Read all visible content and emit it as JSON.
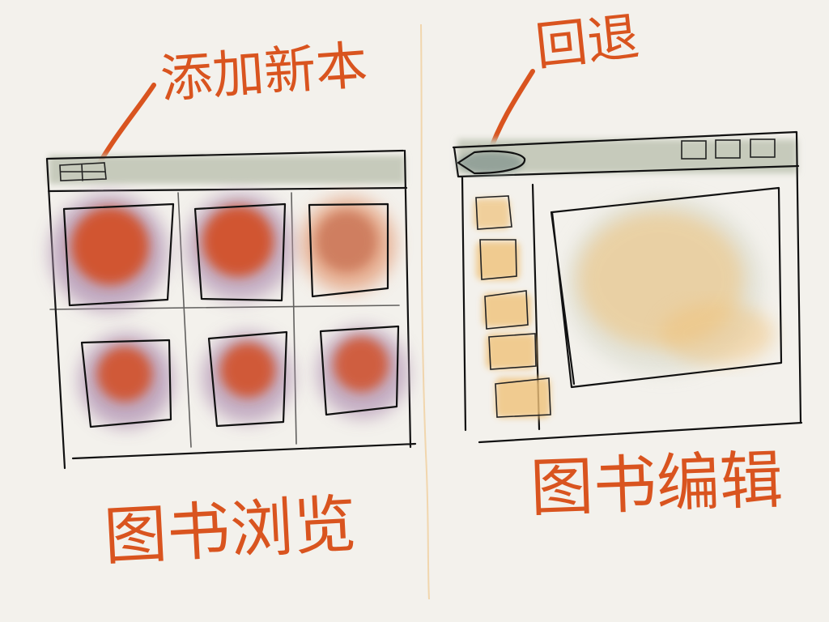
{
  "annotations": {
    "add_new": "添加新本",
    "back": "回退"
  },
  "captions": {
    "browse": "图书浏览",
    "edit": "图书编辑"
  },
  "colors": {
    "paper": "#f3f1ec",
    "ink": "#111111",
    "annotation": "#d9541f",
    "toolbar_wash": "#c6cabb",
    "thumb_red": "#d2512b",
    "thumb_violet": "#b79bb8",
    "thumb_yellow": "#f0c27a",
    "divider": "#f0cf9e"
  },
  "icons": {
    "add_button": "grid-plus-icon",
    "back_button": "back-arrow-icon",
    "window_controls": [
      "window-control-box-icon",
      "window-control-box-icon",
      "window-control-box-icon"
    ]
  }
}
